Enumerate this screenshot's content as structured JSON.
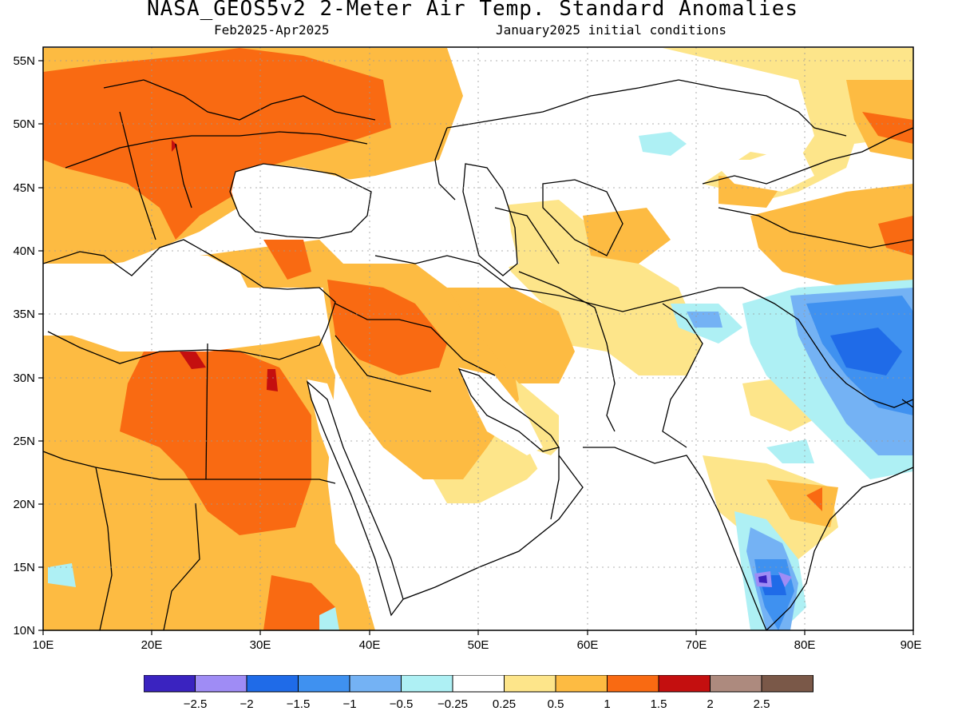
{
  "title": "NASA_GEOS5v2 2-Meter Air Temp. Standard Anomalies",
  "subtitle_left": "Feb2025-Apr2025",
  "subtitle_right": "January2025 initial conditions",
  "axes": {
    "lon_ticks": [
      "10E",
      "20E",
      "30E",
      "40E",
      "50E",
      "60E",
      "70E",
      "80E",
      "90E"
    ],
    "lat_ticks": [
      "55N",
      "50N",
      "45N",
      "40N",
      "35N",
      "30N",
      "25N",
      "20N",
      "15N",
      "10N"
    ]
  },
  "colors": {
    "white": "#ffffff",
    "light_yellow": "#fde58a",
    "light_orange": "#fdbb42",
    "orange": "#f96a12",
    "dark_red": "#c40f0f",
    "light_cyan": "#aef0f4",
    "light_blue": "#74b2f4",
    "mid_blue": "#3f91f0",
    "blue": "#1f6be8",
    "lavender": "#9f8cf5",
    "indigo": "#3a23c0"
  },
  "legend": {
    "swatch_colors": [
      "#3a23c0",
      "#9f8cf5",
      "#1f6be8",
      "#3f91f0",
      "#74b2f4",
      "#aef0f4",
      "#ffffff",
      "#fde58a",
      "#fdbb42",
      "#f96a12",
      "#c40f0f",
      "#ad8a7e",
      "#7a5848"
    ],
    "labels": [
      "-2.5",
      "-2",
      "-1.5",
      "-1",
      "-0.5",
      "-0.25",
      "0.25",
      "0.5",
      "1",
      "1.5",
      "2",
      "2.5"
    ]
  }
}
